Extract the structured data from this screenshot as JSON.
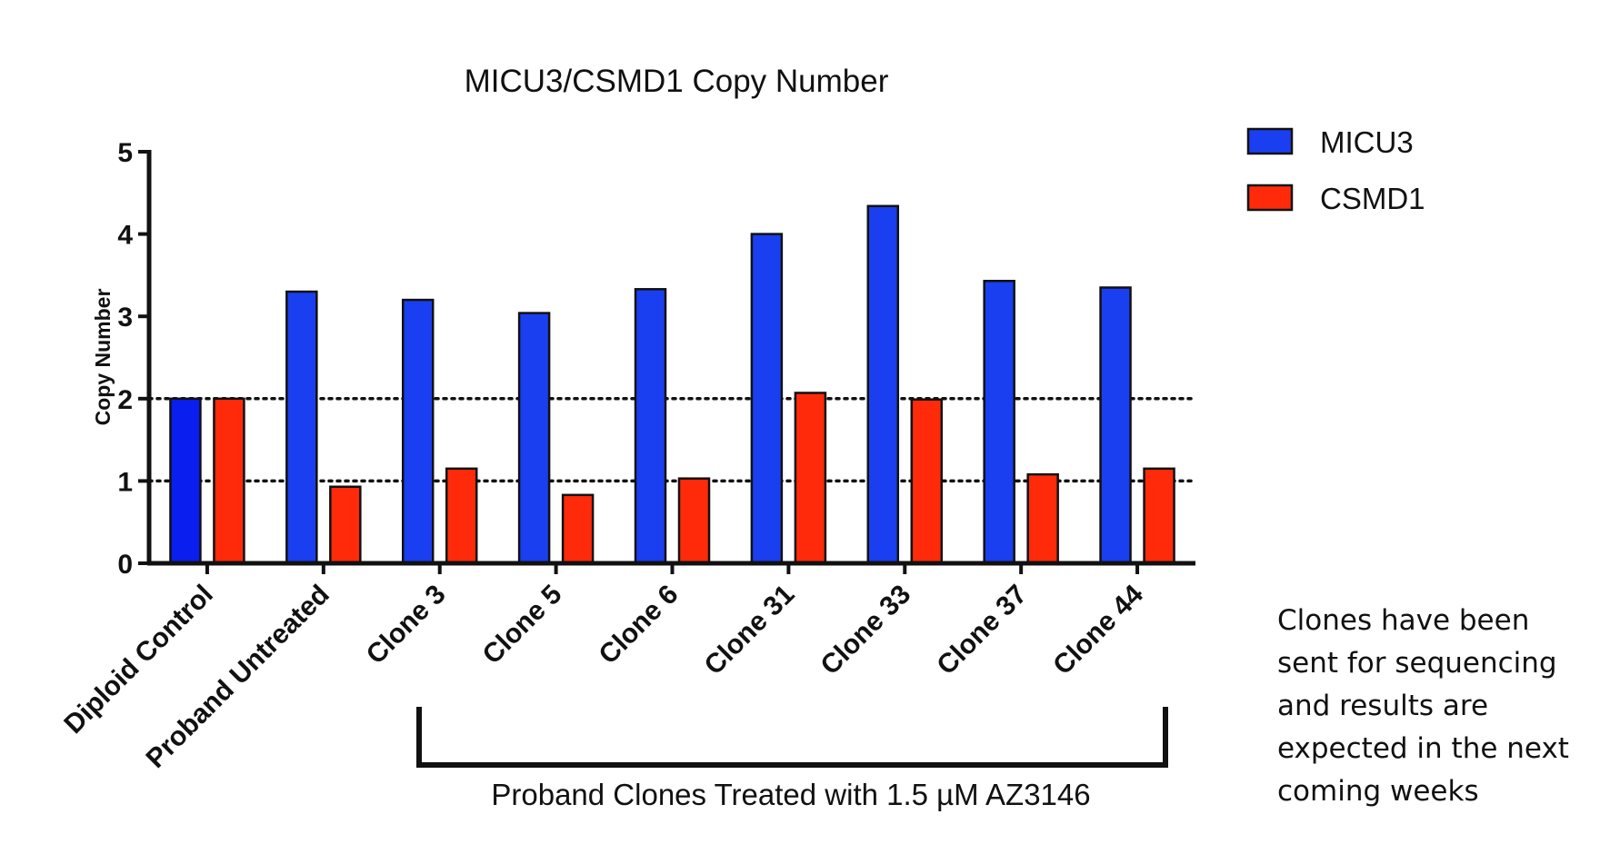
{
  "chart_data": {
    "type": "bar",
    "title": "MICU3/CSMD1 Copy Number",
    "ylabel": "Copy Number",
    "xlabel": "",
    "ylim": [
      0,
      5
    ],
    "yticks": [
      "0",
      "1",
      "2",
      "3",
      "4",
      "5"
    ],
    "reference_lines": [
      1,
      2
    ],
    "categories": [
      "Diploid Control",
      "Proband Untreated",
      "Clone 3",
      "Clone 5",
      "Clone 6",
      "Clone 31",
      "Clone 33",
      "Clone 37",
      "Clone 44"
    ],
    "series": [
      {
        "name": "MICU3",
        "color": "#1a3ff0",
        "values": [
          2.0,
          3.3,
          3.2,
          3.04,
          3.33,
          4.0,
          4.34,
          3.43,
          3.35
        ]
      },
      {
        "name": "CSMD1",
        "color": "#ff2a0a",
        "values": [
          2.0,
          0.93,
          1.15,
          0.83,
          1.03,
          2.07,
          1.99,
          1.08,
          1.15
        ]
      }
    ],
    "first_bar_color": "#0a1ef0",
    "legend_position": "top-right",
    "bracket_label": "Proband Clones Treated with 1.5 µM AZ3146"
  },
  "note_lines": [
    "Clones have been",
    "sent for sequencing",
    "and results are",
    "expected in the next",
    "coming weeks"
  ]
}
